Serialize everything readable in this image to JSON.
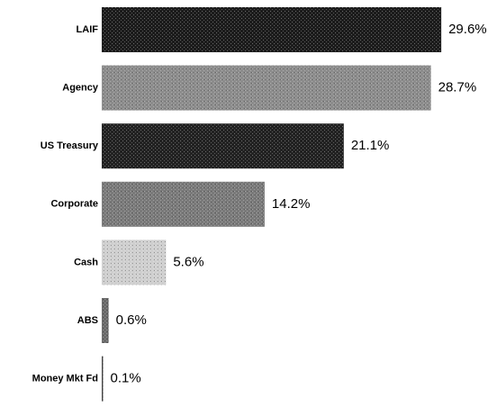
{
  "chart_data": {
    "type": "bar",
    "orientation": "horizontal",
    "categories": [
      "LAIF",
      "Agency",
      "US Treasury",
      "Corporate",
      "Cash",
      "ABS",
      "Money Mkt Fd"
    ],
    "values": [
      29.6,
      28.7,
      21.1,
      14.2,
      5.6,
      0.6,
      0.1
    ],
    "value_labels": [
      "29.6%",
      "28.7%",
      "21.1%",
      "14.2%",
      "5.6%",
      "0.6%",
      "0.1%"
    ],
    "colors": [
      "#1c1c1c",
      "#8c8c8c",
      "#222222",
      "#7a7a7a",
      "#cfcfcf",
      "#6a6a6a",
      "#444444"
    ]
  }
}
